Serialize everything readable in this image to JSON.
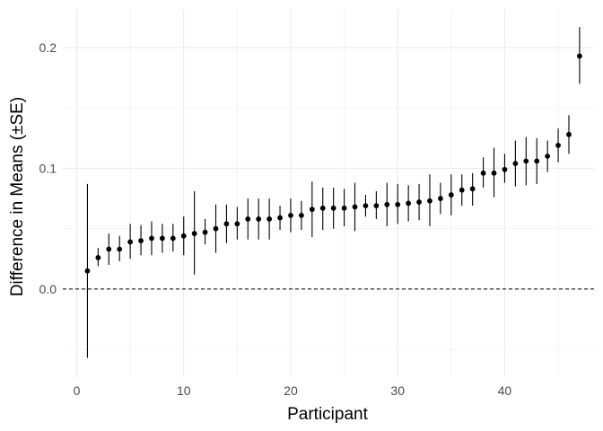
{
  "chart_data": {
    "type": "scatter",
    "xlabel": "Participant",
    "ylabel": "Difference in Means (±SE)",
    "xlim": [
      -1.3,
      48.35
    ],
    "ylim": [
      -0.073,
      0.232
    ],
    "x_ticks": [
      0,
      10,
      20,
      30,
      40
    ],
    "x_tick_labels": [
      "0",
      "10",
      "20",
      "30",
      "40"
    ],
    "y_ticks": [
      0.0,
      0.1,
      0.2
    ],
    "y_tick_labels": [
      "0.0",
      "0.1",
      "0.2"
    ],
    "grid": true,
    "reference_line": {
      "y": 0,
      "style": "dashed"
    },
    "legend": "none",
    "colors": {
      "point": "#000000",
      "grid": "#ebebeb",
      "reference": "#000000"
    },
    "series": [
      {
        "x": [
          1,
          2,
          3,
          4,
          5,
          6,
          7,
          8,
          9,
          10,
          11,
          12,
          13,
          14,
          15,
          16,
          17,
          18,
          19,
          20,
          21,
          22,
          23,
          24,
          25,
          26,
          27,
          28,
          29,
          30,
          31,
          32,
          33,
          34,
          35,
          36,
          37,
          38,
          39,
          40,
          41,
          42,
          43,
          44,
          45,
          46,
          47
        ],
        "y": [
          0.015,
          0.026,
          0.033,
          0.033,
          0.039,
          0.04,
          0.042,
          0.042,
          0.042,
          0.044,
          0.046,
          0.047,
          0.05,
          0.054,
          0.054,
          0.058,
          0.058,
          0.058,
          0.059,
          0.061,
          0.061,
          0.066,
          0.067,
          0.067,
          0.067,
          0.068,
          0.069,
          0.069,
          0.07,
          0.07,
          0.071,
          0.072,
          0.073,
          0.075,
          0.078,
          0.082,
          0.083,
          0.096,
          0.096,
          0.099,
          0.104,
          0.106,
          0.106,
          0.11,
          0.119,
          0.128,
          0.193
        ],
        "lower": [
          -0.057,
          0.019,
          0.02,
          0.023,
          0.025,
          0.028,
          0.028,
          0.03,
          0.031,
          0.028,
          0.012,
          0.037,
          0.03,
          0.038,
          0.041,
          0.041,
          0.041,
          0.041,
          0.049,
          0.047,
          0.049,
          0.043,
          0.049,
          0.05,
          0.052,
          0.048,
          0.06,
          0.058,
          0.052,
          0.054,
          0.056,
          0.057,
          0.052,
          0.062,
          0.061,
          0.069,
          0.069,
          0.084,
          0.076,
          0.088,
          0.085,
          0.086,
          0.087,
          0.097,
          0.105,
          0.112,
          0.17
        ],
        "upper": [
          0.087,
          0.034,
          0.046,
          0.044,
          0.054,
          0.053,
          0.056,
          0.054,
          0.054,
          0.06,
          0.081,
          0.058,
          0.07,
          0.07,
          0.068,
          0.075,
          0.075,
          0.075,
          0.069,
          0.075,
          0.073,
          0.089,
          0.084,
          0.084,
          0.083,
          0.088,
          0.078,
          0.081,
          0.088,
          0.087,
          0.086,
          0.087,
          0.095,
          0.088,
          0.095,
          0.095,
          0.096,
          0.109,
          0.117,
          0.112,
          0.123,
          0.126,
          0.125,
          0.123,
          0.133,
          0.144,
          0.217
        ]
      }
    ]
  }
}
